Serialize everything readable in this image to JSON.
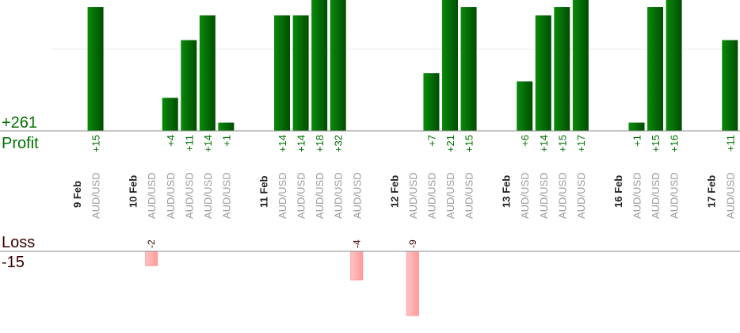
{
  "chart_data": {
    "type": "bar",
    "profit_label": "Profit",
    "loss_label": "Loss",
    "profit_total": "+261",
    "loss_total": "-15",
    "colors": {
      "profit": "#006400",
      "profit_light": "#0a8a0a",
      "loss": "#ffaaaa",
      "loss_border": "#ff9999",
      "profit_text": "#007000",
      "loss_text": "#3a0000"
    },
    "groups": [
      {
        "date": "9 Feb",
        "trades": [
          {
            "pair": "AUD/USD",
            "value": 15
          }
        ]
      },
      {
        "date": "10 Feb",
        "trades": [
          {
            "pair": "AUD/USD",
            "value": -2
          },
          {
            "pair": "AUD/USD",
            "value": 4
          },
          {
            "pair": "AUD/USD",
            "value": 11
          },
          {
            "pair": "AUD/USD",
            "value": 14
          },
          {
            "pair": "AUD/USD",
            "value": 1
          }
        ]
      },
      {
        "date": "11 Feb",
        "trades": [
          {
            "pair": "AUD/USD",
            "value": 14
          },
          {
            "pair": "AUD/USD",
            "value": 14
          },
          {
            "pair": "AUD/USD",
            "value": 18
          },
          {
            "pair": "AUD/USD",
            "value": 32
          },
          {
            "pair": "AUD/USD",
            "value": -4
          }
        ]
      },
      {
        "date": "12 Feb",
        "trades": [
          {
            "pair": "AUD/USD",
            "value": -9
          },
          {
            "pair": "AUD/USD",
            "value": 7
          },
          {
            "pair": "AUD/USD",
            "value": 21
          },
          {
            "pair": "AUD/USD",
            "value": 15
          }
        ]
      },
      {
        "date": "13 Feb",
        "trades": [
          {
            "pair": "AUD/USD",
            "value": 6
          },
          {
            "pair": "AUD/USD",
            "value": 14
          },
          {
            "pair": "AUD/USD",
            "value": 15
          },
          {
            "pair": "AUD/USD",
            "value": 17
          }
        ]
      },
      {
        "date": "16 Feb",
        "trades": [
          {
            "pair": "AUD/USD",
            "value": 1
          },
          {
            "pair": "AUD/USD",
            "value": 15
          },
          {
            "pair": "AUD/USD",
            "value": 16
          }
        ]
      },
      {
        "date": "17 Feb",
        "trades": [
          {
            "pair": "AUD/USD",
            "value": 11
          }
        ]
      }
    ]
  }
}
